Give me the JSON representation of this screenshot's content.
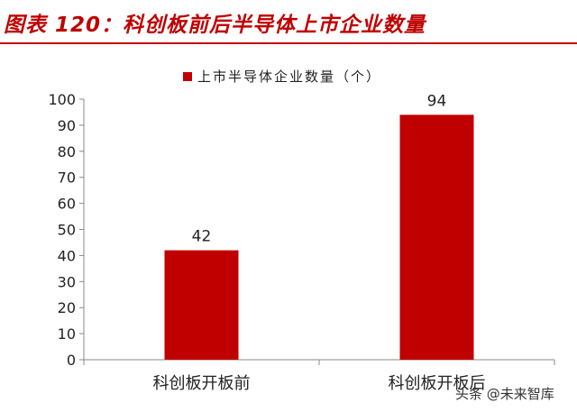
{
  "header": {
    "title": "图表 120：科创板前后半导体上市企业数量"
  },
  "colors": {
    "accent": "#c00000",
    "bar": "#c00000",
    "axis": "#888888",
    "text": "#222222"
  },
  "chart_data": {
    "type": "bar",
    "categories": [
      "科创板开板前",
      "科创板开板后"
    ],
    "series": [
      {
        "name": "上市半导体企业数量（个）",
        "values": [
          42,
          94
        ]
      }
    ],
    "ylim": [
      0,
      100
    ],
    "yticks": [
      0,
      10,
      20,
      30,
      40,
      50,
      60,
      70,
      80,
      90,
      100
    ],
    "data_labels": [
      "42",
      "94"
    ],
    "grid": false,
    "legend_position": "top-center"
  },
  "watermark": {
    "text": "头条 @未来智库"
  }
}
